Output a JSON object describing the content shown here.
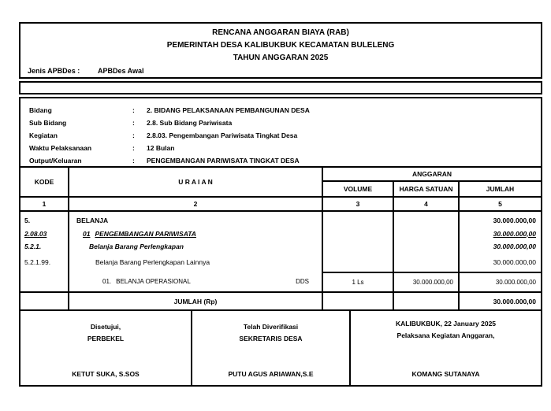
{
  "header": {
    "title1": "RENCANA ANGGARAN BIAYA (RAB)",
    "title2": "PEMERINTAH DESA KALIBUKBUK KECAMATAN BULELENG",
    "title3": "TAHUN ANGGARAN 2025",
    "jenis_label": "Jenis APBDes :",
    "jenis_value": "APBDes Awal"
  },
  "info": {
    "rows": [
      {
        "label": "Bidang",
        "sep": ":",
        "value": "2. BIDANG PELAKSANAAN PEMBANGUNAN DESA"
      },
      {
        "label": "Sub Bidang",
        "sep": ":",
        "value": "2.8. Sub Bidang Pariwisata"
      },
      {
        "label": "Kegiatan",
        "sep": ":",
        "value": "2.8.03. Pengembangan Pariwisata Tingkat Desa"
      },
      {
        "label": "Waktu Pelaksanaan",
        "sep": ":",
        "value": "12 Bulan"
      },
      {
        "label": "Output/Keluaran",
        "sep": ":",
        "value": "PENGEMBANGAN PARIWISATA TINGKAT DESA"
      }
    ]
  },
  "table": {
    "head": {
      "kode": "KODE",
      "uraian": "U R A I A N",
      "anggaran": "ANGGARAN",
      "volume": "VOLUME",
      "harga": "HARGA SATUAN",
      "jumlah": "JUMLAH",
      "num1": "1",
      "num2": "2",
      "num3": "3",
      "num4": "4",
      "num5": "5"
    },
    "rows": [
      {
        "kode": "5.",
        "uraian": "BELANJA",
        "jumlah": "30.000.000,00"
      },
      {
        "kode": "2.08.03",
        "num": "01",
        "uraian": "PENGEMBANGAN PARIWISATA",
        "jumlah": "30.000.000,00"
      },
      {
        "kode": "5.2.1.",
        "uraian": "Belanja Barang Perlengkapan",
        "jumlah": "30.000.000,00"
      },
      {
        "kode": "5.2.1.99.",
        "uraian": "Belanja Barang Perlengkapan Lainnya",
        "jumlah": "30.000.000,00"
      }
    ],
    "detail": {
      "num": "01.",
      "uraian": "BELANJA OPERASIONAL",
      "source": "DDS",
      "volume": "1 Ls",
      "harga": "30.000.000,00",
      "jumlah": "30.000.000,00"
    },
    "total_label": "JUMLAH (Rp)",
    "total_value": "30.000.000,00"
  },
  "signatures": {
    "col1": {
      "line1": "Disetujui,",
      "line2": "PERBEKEL",
      "name": "KETUT SUKA, S.SOS"
    },
    "col2": {
      "line1": "Telah Diverifikasi",
      "line2": "SEKRETARIS DESA",
      "name": "PUTU AGUS ARIAWAN,S.E"
    },
    "col3": {
      "line1": "KALIBUKBUK,  22 January 2025",
      "line2": "Pelaksana Kegiatan Anggaran,",
      "name": "KOMANG SUTANAYA"
    }
  },
  "colors": {
    "text": "#000000",
    "border": "#000000",
    "background": "#ffffff"
  }
}
